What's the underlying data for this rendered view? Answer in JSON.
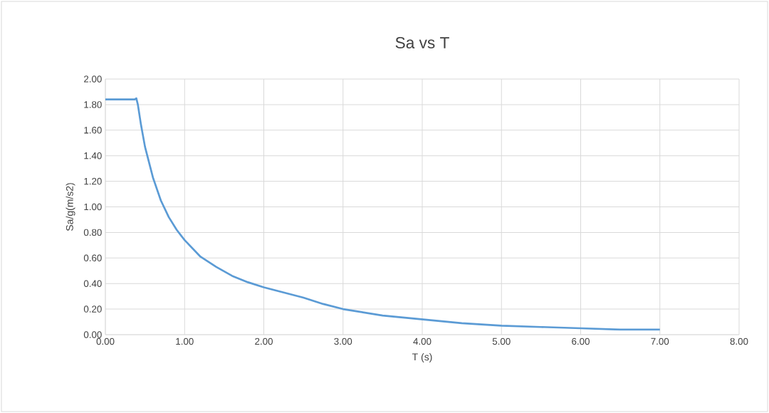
{
  "chart_data": {
    "type": "line",
    "title": "Sa vs T",
    "xlabel": "T (s)",
    "ylabel": "Sa/g(m/s2)",
    "x": [
      0,
      0.37,
      0.39,
      0.41,
      0.45,
      0.5,
      0.6,
      0.7,
      0.8,
      0.9,
      1.0,
      1.2,
      1.4,
      1.6,
      1.8,
      2.0,
      2.25,
      2.5,
      2.75,
      3.0,
      3.5,
      4.0,
      4.5,
      5.0,
      5.5,
      6.0,
      6.5,
      7.0
    ],
    "series": [
      {
        "color": "#5b9bd5",
        "values": [
          1.84,
          1.84,
          1.85,
          1.8,
          1.64,
          1.47,
          1.23,
          1.05,
          0.92,
          0.82,
          0.74,
          0.61,
          0.53,
          0.46,
          0.41,
          0.37,
          0.33,
          0.29,
          0.24,
          0.2,
          0.15,
          0.12,
          0.09,
          0.07,
          0.06,
          0.05,
          0.04,
          0.04
        ]
      }
    ],
    "xlim": [
      0,
      8
    ],
    "ylim": [
      0,
      2
    ],
    "xticks": [
      {
        "value": 0,
        "label": "0.00"
      },
      {
        "value": 1,
        "label": "1.00"
      },
      {
        "value": 2,
        "label": "2.00"
      },
      {
        "value": 3,
        "label": "3.00"
      },
      {
        "value": 4,
        "label": "4.00"
      },
      {
        "value": 5,
        "label": "5.00"
      },
      {
        "value": 6,
        "label": "6.00"
      },
      {
        "value": 7,
        "label": "7.00"
      },
      {
        "value": 8,
        "label": "8.00"
      }
    ],
    "yticks": [
      {
        "value": 0,
        "label": "0.00"
      },
      {
        "value": 0.2,
        "label": "0.20"
      },
      {
        "value": 0.4,
        "label": "0.40"
      },
      {
        "value": 0.6,
        "label": "0.60"
      },
      {
        "value": 0.8,
        "label": "0.80"
      },
      {
        "value": 1.0,
        "label": "1.00"
      },
      {
        "value": 1.2,
        "label": "1.20"
      },
      {
        "value": 1.4,
        "label": "1.40"
      },
      {
        "value": 1.6,
        "label": "1.60"
      },
      {
        "value": 1.8,
        "label": "1.80"
      },
      {
        "value": 2.0,
        "label": "2.00"
      }
    ],
    "grid": true,
    "marker": "none",
    "line_style": "solid"
  }
}
